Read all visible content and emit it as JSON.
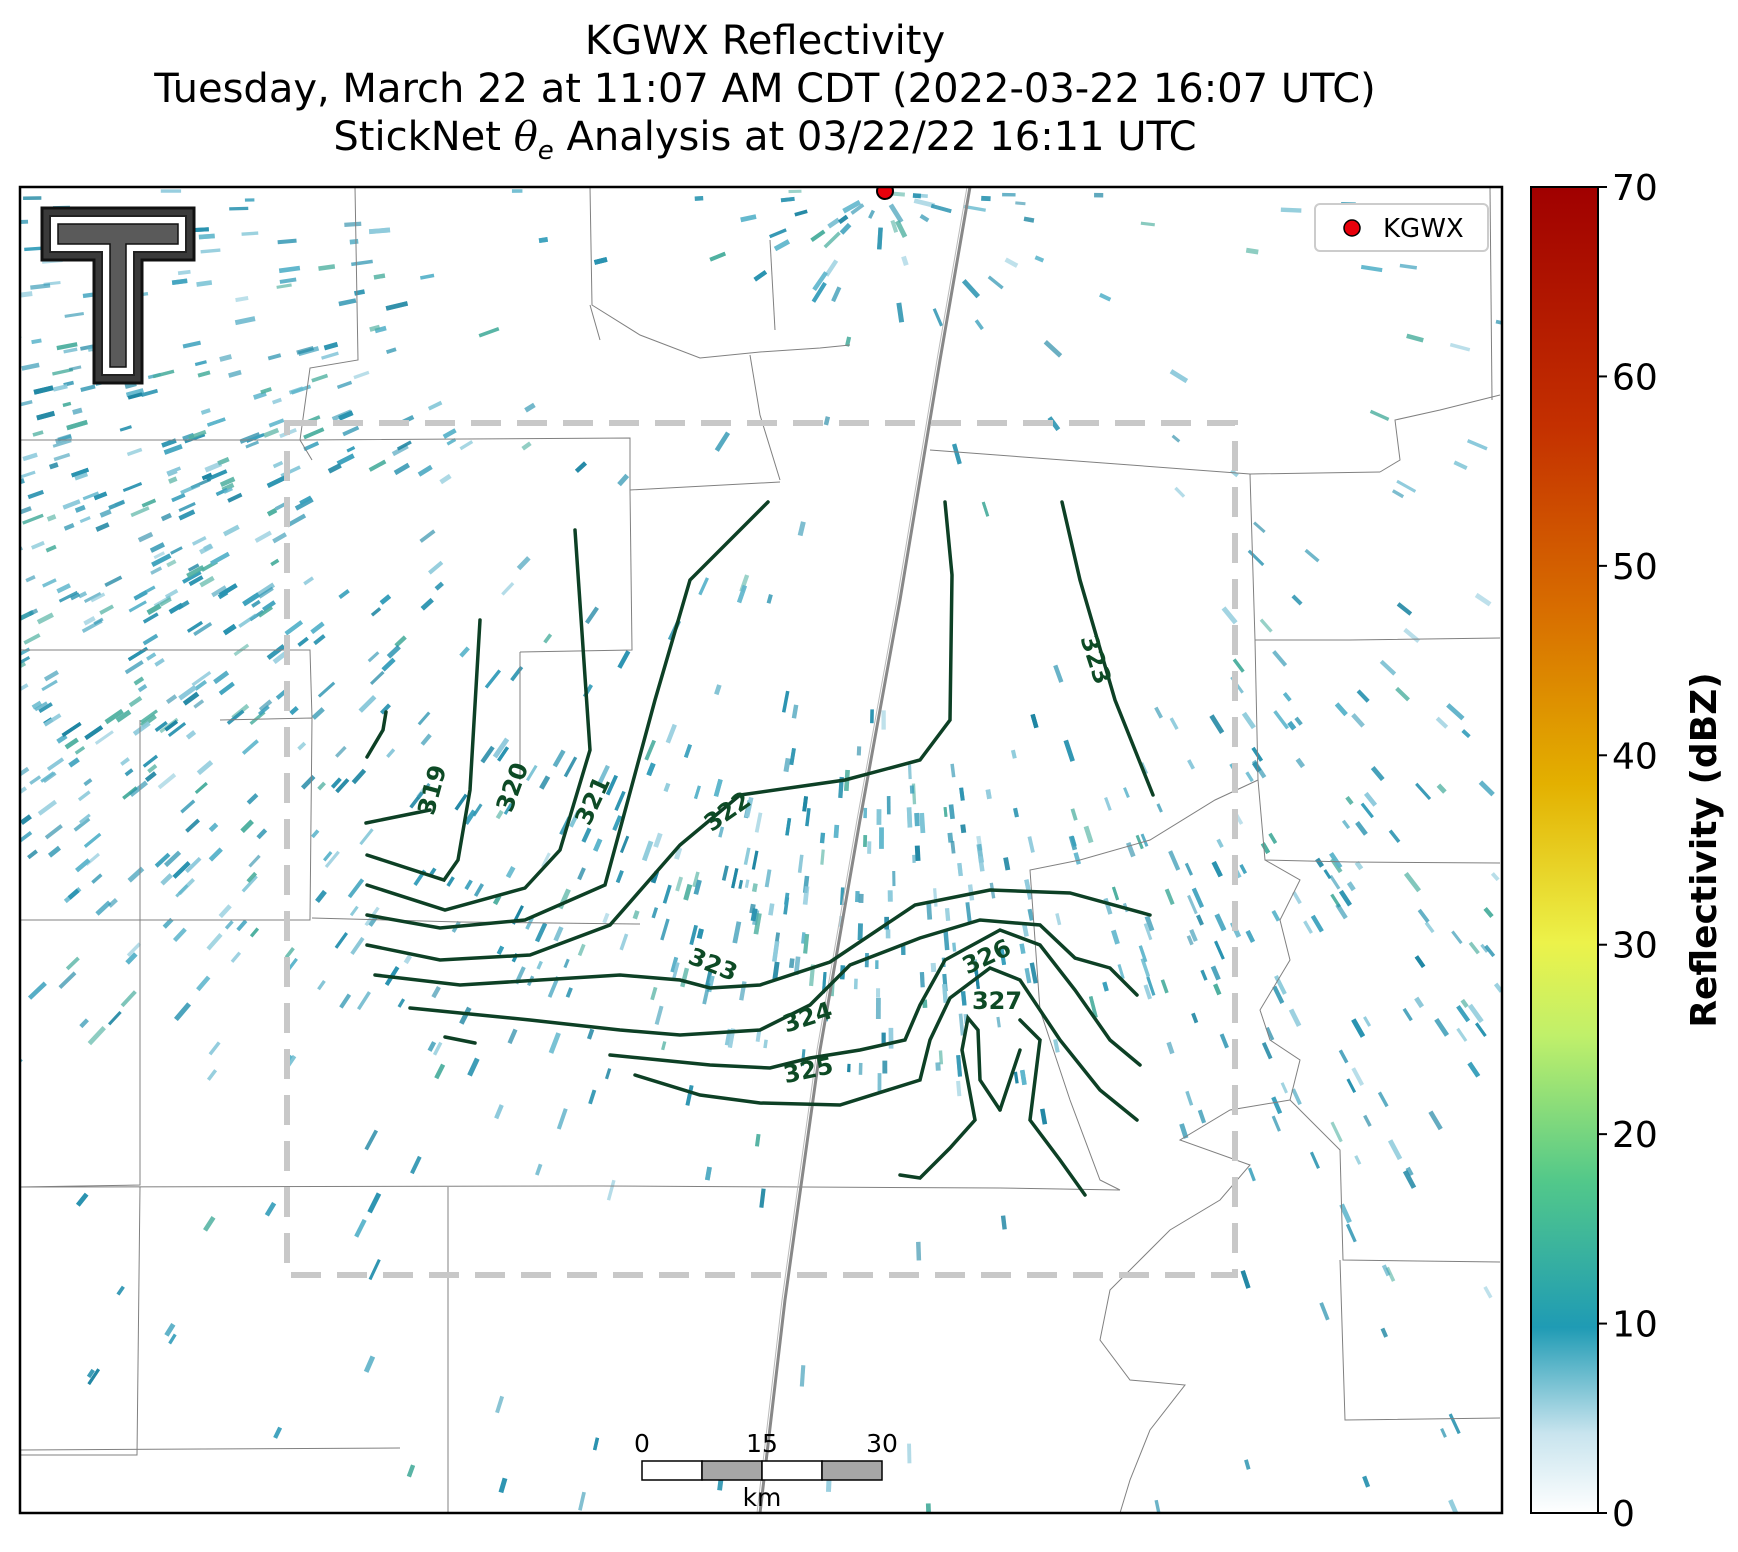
{
  "title": {
    "line1": "KGWX Reflectivity",
    "line2": "Tuesday, March 22 at 11:07 AM CDT (2022-03-22 16:07 UTC)",
    "line3_prefix": "StickNet ",
    "line3_theta": "θ",
    "line3_sub": "e",
    "line3_suffix": " Analysis at 03/22/22 16:11 UTC"
  },
  "legend": {
    "label": "KGWX",
    "marker_color": "#e8000b"
  },
  "colorbar": {
    "label": "Reflectivity (dBZ)",
    "ticks": [
      "0",
      "10",
      "20",
      "30",
      "40",
      "50",
      "60",
      "70"
    ],
    "colors": [
      "#ffffff",
      "#1f9bb4",
      "#52c88a",
      "#e8f44a",
      "#e0a800",
      "#d46a00",
      "#c02a00",
      "#a00000"
    ]
  },
  "contour_labels": [
    "319",
    "320",
    "321",
    "322",
    "323",
    "323",
    "324",
    "325",
    "326",
    "327"
  ],
  "scale_bar": {
    "labels": [
      "0",
      "15",
      "30"
    ],
    "unit": "km"
  },
  "logo": {
    "text": "T"
  },
  "colors": {
    "contour": "#0d4025",
    "echo": "#2a93b0",
    "box": "#c8c8c8"
  }
}
